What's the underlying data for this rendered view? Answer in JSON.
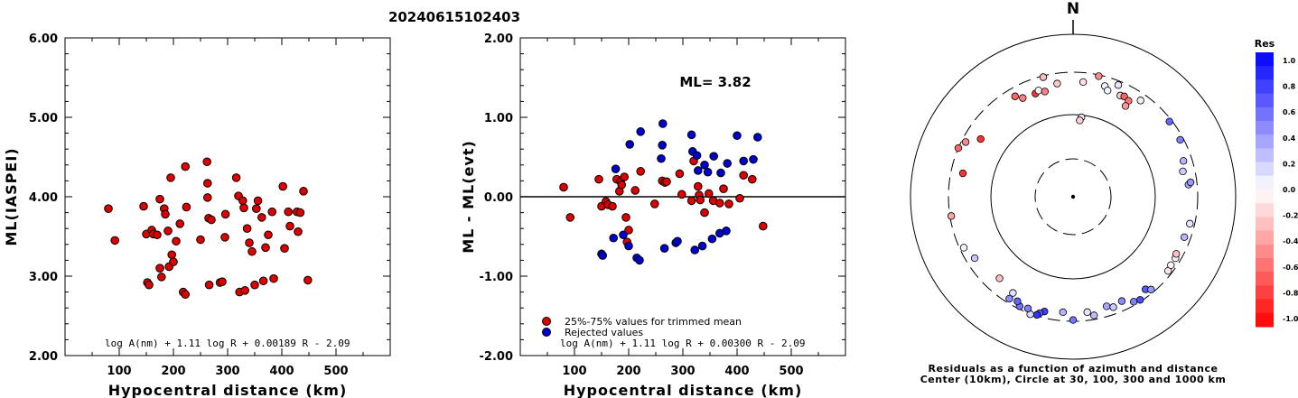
{
  "figure_title": "20240615102403",
  "colors": {
    "red": "#dd0000",
    "blue": "#0000cc"
  },
  "chart_data": [
    {
      "type": "scatter",
      "xlabel": "Hypocentral distance (km)",
      "ylabel": "ML(IASPEI)",
      "xlim": [
        0,
        600
      ],
      "ylim": [
        2,
        6
      ],
      "xticks": [
        100,
        200,
        300,
        400,
        500
      ],
      "yticks": [
        "2.00",
        "3.00",
        "4.00",
        "5.00",
        "6.00"
      ],
      "formula": "log A(nm) + 1.11 log R + 0.00189 R - 2.09",
      "points": [
        [
          80,
          3.85
        ],
        [
          92,
          3.45
        ],
        [
          145,
          3.88
        ],
        [
          150,
          3.53
        ],
        [
          152,
          2.92
        ],
        [
          155,
          2.89
        ],
        [
          160,
          3.58
        ],
        [
          163,
          3.53
        ],
        [
          170,
          3.52
        ],
        [
          175,
          3.1
        ],
        [
          175,
          3.97
        ],
        [
          178,
          2.99
        ],
        [
          183,
          3.85
        ],
        [
          185,
          3.78
        ],
        [
          190,
          3.57
        ],
        [
          192,
          3.12
        ],
        [
          195,
          4.24
        ],
        [
          197,
          3.27
        ],
        [
          200,
          3.18
        ],
        [
          205,
          3.44
        ],
        [
          212,
          3.66
        ],
        [
          218,
          2.8
        ],
        [
          222,
          2.77
        ],
        [
          222,
          4.38
        ],
        [
          224,
          3.87
        ],
        [
          250,
          3.46
        ],
        [
          262,
          4.44
        ],
        [
          263,
          4.17
        ],
        [
          263,
          3.99
        ],
        [
          265,
          3.73
        ],
        [
          266,
          2.89
        ],
        [
          270,
          3.71
        ],
        [
          286,
          2.92
        ],
        [
          290,
          2.93
        ],
        [
          295,
          3.49
        ],
        [
          296,
          3.78
        ],
        [
          316,
          4.24
        ],
        [
          320,
          4.01
        ],
        [
          322,
          2.8
        ],
        [
          328,
          3.95
        ],
        [
          330,
          3.86
        ],
        [
          332,
          2.82
        ],
        [
          336,
          3.6
        ],
        [
          340,
          3.42
        ],
        [
          345,
          3.31
        ],
        [
          350,
          2.89
        ],
        [
          353,
          3.85
        ],
        [
          356,
          3.95
        ],
        [
          363,
          3.74
        ],
        [
          366,
          2.94
        ],
        [
          370,
          3.36
        ],
        [
          375,
          3.52
        ],
        [
          382,
          3.81
        ],
        [
          385,
          2.97
        ],
        [
          402,
          4.13
        ],
        [
          405,
          3.35
        ],
        [
          412,
          3.81
        ],
        [
          415,
          3.63
        ],
        [
          428,
          3.81
        ],
        [
          430,
          3.56
        ],
        [
          434,
          3.8
        ],
        [
          440,
          4.07
        ],
        [
          448,
          2.95
        ]
      ]
    },
    {
      "type": "scatter",
      "xlabel": "Hypocentral distance (km)",
      "ylabel": "ML - ML(evt)",
      "xlim": [
        0,
        600
      ],
      "ylim": [
        -2,
        2
      ],
      "xticks": [
        100,
        200,
        300,
        400,
        500
      ],
      "yticks": [
        "-2.00",
        "-1.00",
        "0.00",
        "1.00",
        "2.00"
      ],
      "annotation": "ML= 3.82",
      "legend": [
        "25%-75% values for trimmed mean",
        "Rejected values"
      ],
      "formula": "log A(nm) + 1.11 log R + 0.00300 R - 2.09",
      "trimmed": [
        [
          80,
          0.12
        ],
        [
          92,
          -0.26
        ],
        [
          145,
          0.22
        ],
        [
          150,
          -0.12
        ],
        [
          158,
          -0.06
        ],
        [
          162,
          -0.1
        ],
        [
          170,
          -0.12
        ],
        [
          178,
          0.22
        ],
        [
          183,
          0.07
        ],
        [
          185,
          0.19
        ],
        [
          187,
          0.15
        ],
        [
          192,
          0.25
        ],
        [
          195,
          -0.26
        ],
        [
          197,
          -0.57
        ],
        [
          200,
          -0.42
        ],
        [
          212,
          0.08
        ],
        [
          222,
          0.32
        ],
        [
          248,
          -0.09
        ],
        [
          262,
          0.2
        ],
        [
          267,
          0.18
        ],
        [
          270,
          0.19
        ],
        [
          294,
          0.29
        ],
        [
          298,
          0.03
        ],
        [
          316,
          -0.05
        ],
        [
          320,
          0.45
        ],
        [
          328,
          0.13
        ],
        [
          330,
          0.02
        ],
        [
          332,
          -0.04
        ],
        [
          340,
          -0.2
        ],
        [
          348,
          0.04
        ],
        [
          356,
          -0.05
        ],
        [
          368,
          -0.08
        ],
        [
          375,
          0.1
        ],
        [
          385,
          -0.09
        ],
        [
          405,
          -0.02
        ],
        [
          412,
          0.27
        ],
        [
          428,
          0.22
        ],
        [
          448,
          -0.37
        ]
      ],
      "rejected": [
        [
          150,
          -0.72
        ],
        [
          152,
          -0.74
        ],
        [
          172,
          -0.52
        ],
        [
          176,
          0.35
        ],
        [
          190,
          -0.48
        ],
        [
          200,
          -0.62
        ],
        [
          202,
          0.66
        ],
        [
          215,
          -0.77
        ],
        [
          220,
          -0.8
        ],
        [
          222,
          0.82
        ],
        [
          260,
          0.48
        ],
        [
          262,
          0.65
        ],
        [
          263,
          0.92
        ],
        [
          266,
          -0.65
        ],
        [
          287,
          -0.58
        ],
        [
          290,
          -0.56
        ],
        [
          316,
          0.78
        ],
        [
          318,
          0.57
        ],
        [
          322,
          -0.67
        ],
        [
          326,
          0.52
        ],
        [
          328,
          0.33
        ],
        [
          336,
          -0.62
        ],
        [
          340,
          0.4
        ],
        [
          346,
          0.31
        ],
        [
          354,
          -0.53
        ],
        [
          357,
          0.51
        ],
        [
          368,
          -0.46
        ],
        [
          370,
          0.3
        ],
        [
          380,
          -0.43
        ],
        [
          382,
          0.42
        ],
        [
          400,
          0.77
        ],
        [
          412,
          0.45
        ],
        [
          430,
          0.47
        ],
        [
          438,
          0.75
        ]
      ]
    },
    {
      "type": "scatter",
      "subtype": "polar residuals",
      "north_label": "N",
      "caption": [
        "Residuals as a function of azimuth and distance",
        "Center (10km), Circle at 30, 100, 300 and 1000 km"
      ],
      "colorbar_title": "Res",
      "colorbar_ticks": [
        "1.0",
        "0.8",
        "0.6",
        "0.4",
        "0.2",
        "0.0",
        "-0.2",
        "-0.4",
        "-0.6",
        "-0.8",
        "-1.0"
      ],
      "points": [
        {
          "az": 346,
          "dist": 290,
          "res": -0.26
        },
        {
          "az": 352,
          "dist": 230,
          "res": -0.22
        },
        {
          "az": 5,
          "dist": 235,
          "res": -0.12
        },
        {
          "az": 12,
          "dist": 290,
          "res": -0.45
        },
        {
          "az": 16,
          "dist": 235,
          "res": 0.05
        },
        {
          "az": 18,
          "dist": 215,
          "res": 0.04
        },
        {
          "az": 22,
          "dist": 270,
          "res": 0.1
        },
        {
          "az": 25,
          "dist": 215,
          "res": -0.2
        },
        {
          "az": 27,
          "dist": 220,
          "res": -0.6
        },
        {
          "az": 30,
          "dist": 210,
          "res": -0.55
        },
        {
          "az": 35,
          "dist": 250,
          "res": 0.06
        },
        {
          "az": 30,
          "dist": 180,
          "res": -0.4
        },
        {
          "az": 6,
          "dist": 94,
          "res": 0.1
        },
        {
          "az": 5,
          "dist": 86,
          "res": -0.2
        },
        {
          "az": 333,
          "dist": 210,
          "res": -0.5
        },
        {
          "az": 330,
          "dist": 240,
          "res": -0.6
        },
        {
          "az": 340,
          "dist": 205,
          "res": -0.8
        },
        {
          "az": 342,
          "dist": 215,
          "res": 0.03
        },
        {
          "az": 345,
          "dist": 200,
          "res": -0.5
        },
        {
          "az": 302,
          "dist": 200,
          "res": -0.8
        },
        {
          "az": 297,
          "dist": 270,
          "res": -0.45
        },
        {
          "az": 293,
          "dist": 300,
          "res": -0.6
        },
        {
          "az": 282,
          "dist": 220,
          "res": -0.8
        },
        {
          "az": 261,
          "dist": 290,
          "res": -0.35
        },
        {
          "az": 245,
          "dist": 270,
          "res": 0.05
        },
        {
          "az": 238,
          "dist": 240,
          "res": 0.22
        },
        {
          "az": 222,
          "dist": 205,
          "res": -0.25
        },
        {
          "az": 212,
          "dist": 225,
          "res": 0.12
        },
        {
          "az": 185,
          "dist": 240,
          "res": 0.3
        },
        {
          "az": 180,
          "dist": 290,
          "res": 0.55
        },
        {
          "az": 194,
          "dist": 255,
          "res": 0.75
        },
        {
          "az": 196,
          "dist": 275,
          "res": 0.65
        },
        {
          "az": 197,
          "dist": 292,
          "res": 0.8
        },
        {
          "az": 200,
          "dist": 305,
          "res": 0.15
        },
        {
          "az": 202,
          "dist": 270,
          "res": 0.5
        },
        {
          "az": 206,
          "dist": 280,
          "res": 0.55
        },
        {
          "az": 208,
          "dist": 256,
          "res": 0.6
        },
        {
          "az": 212,
          "dist": 268,
          "res": 0.45
        },
        {
          "az": 173,
          "dist": 242,
          "res": 0.1
        },
        {
          "az": 170,
          "dist": 270,
          "res": 0.25
        },
        {
          "az": 163,
          "dist": 232,
          "res": 0.35
        },
        {
          "az": 160,
          "dist": 250,
          "res": 0.2
        },
        {
          "az": 155,
          "dist": 235,
          "res": 0.45
        },
        {
          "az": 150,
          "dist": 275,
          "res": 0.5
        },
        {
          "az": 147,
          "dist": 288,
          "res": 0.7
        },
        {
          "az": 142,
          "dist": 250,
          "res": 0.65
        },
        {
          "az": 140,
          "dist": 275,
          "res": 0.4
        },
        {
          "az": 128,
          "dist": 270,
          "res": -0.1
        },
        {
          "az": 125,
          "dist": 262,
          "res": -0.05
        },
        {
          "az": 121,
          "dist": 262,
          "res": 0.05
        },
        {
          "az": 119,
          "dist": 252,
          "res": -0.25
        },
        {
          "az": 110,
          "dist": 255,
          "res": 0.3
        },
        {
          "az": 103,
          "dist": 265,
          "res": 0.1
        },
        {
          "az": 84,
          "dist": 240,
          "res": 0.35
        },
        {
          "az": 83,
          "dist": 255,
          "res": 0.4
        },
        {
          "az": 77,
          "dist": 220,
          "res": 0.2
        },
        {
          "az": 72,
          "dist": 240,
          "res": 0.3
        },
        {
          "az": 62,
          "dist": 275,
          "res": 0.5
        },
        {
          "az": 52,
          "dist": 282,
          "res": 0.6
        }
      ]
    }
  ]
}
